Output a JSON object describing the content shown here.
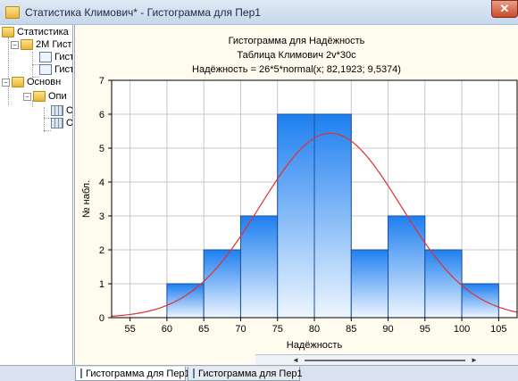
{
  "window": {
    "title": "Статистика Климович* - Гистограмма для Пер1",
    "close_symbol": "✕"
  },
  "tree": {
    "items": [
      {
        "label": "Статистика",
        "toggle": ""
      },
      {
        "label": "2М Гист",
        "toggle": "−"
      },
      {
        "label": "Гист",
        "toggle": ""
      },
      {
        "label": "Гист",
        "toggle": ""
      },
      {
        "label": "Основн",
        "toggle": "−"
      },
      {
        "label": "Опи",
        "toggle": "−"
      },
      {
        "label": "О",
        "toggle": ""
      },
      {
        "label": "О",
        "toggle": ""
      }
    ]
  },
  "tabs": [
    {
      "label": "Гистограмма для Пер1"
    },
    {
      "label": "Гистограмма для Пер1"
    }
  ],
  "scroll": {
    "left_symbol": "◄",
    "right_symbol": "►"
  },
  "colors": {
    "bar_top": "#1e7ff0",
    "bar_bottom": "#eef6ff",
    "bar_edge": "#1b4f9c",
    "curve": "#e03030",
    "plot_bg": "#ffffff",
    "panel_bg": "#fffbee"
  },
  "chart_data": {
    "type": "bar",
    "title": "Гистограмма для Надёжность",
    "subtitle": "Таблица Климович 2v*30c",
    "formula": "Надёжность = 26*5*normal(x; 82,1923; 9,5374)",
    "xlabel": "Надёжность",
    "ylabel": "№ набл.",
    "bins": [
      {
        "from": 60,
        "to": 65,
        "count": 1
      },
      {
        "from": 65,
        "to": 70,
        "count": 2
      },
      {
        "from": 70,
        "to": 75,
        "count": 3
      },
      {
        "from": 75,
        "to": 80,
        "count": 6
      },
      {
        "from": 80,
        "to": 85,
        "count": 6
      },
      {
        "from": 85,
        "to": 90,
        "count": 2
      },
      {
        "from": 90,
        "to": 95,
        "count": 3
      },
      {
        "from": 95,
        "to": 100,
        "count": 2
      },
      {
        "from": 100,
        "to": 105,
        "count": 1
      }
    ],
    "normal_fit": {
      "n": 26,
      "bin_width": 5,
      "mean": 82.1923,
      "sd": 9.5374
    },
    "xlim": [
      52.5,
      107.5
    ],
    "ylim": [
      0,
      7
    ],
    "xticks": [
      55,
      60,
      65,
      70,
      75,
      80,
      85,
      90,
      95,
      100,
      105
    ],
    "yticks": [
      0,
      1,
      2,
      3,
      4,
      5,
      6,
      7
    ],
    "grid": true
  }
}
